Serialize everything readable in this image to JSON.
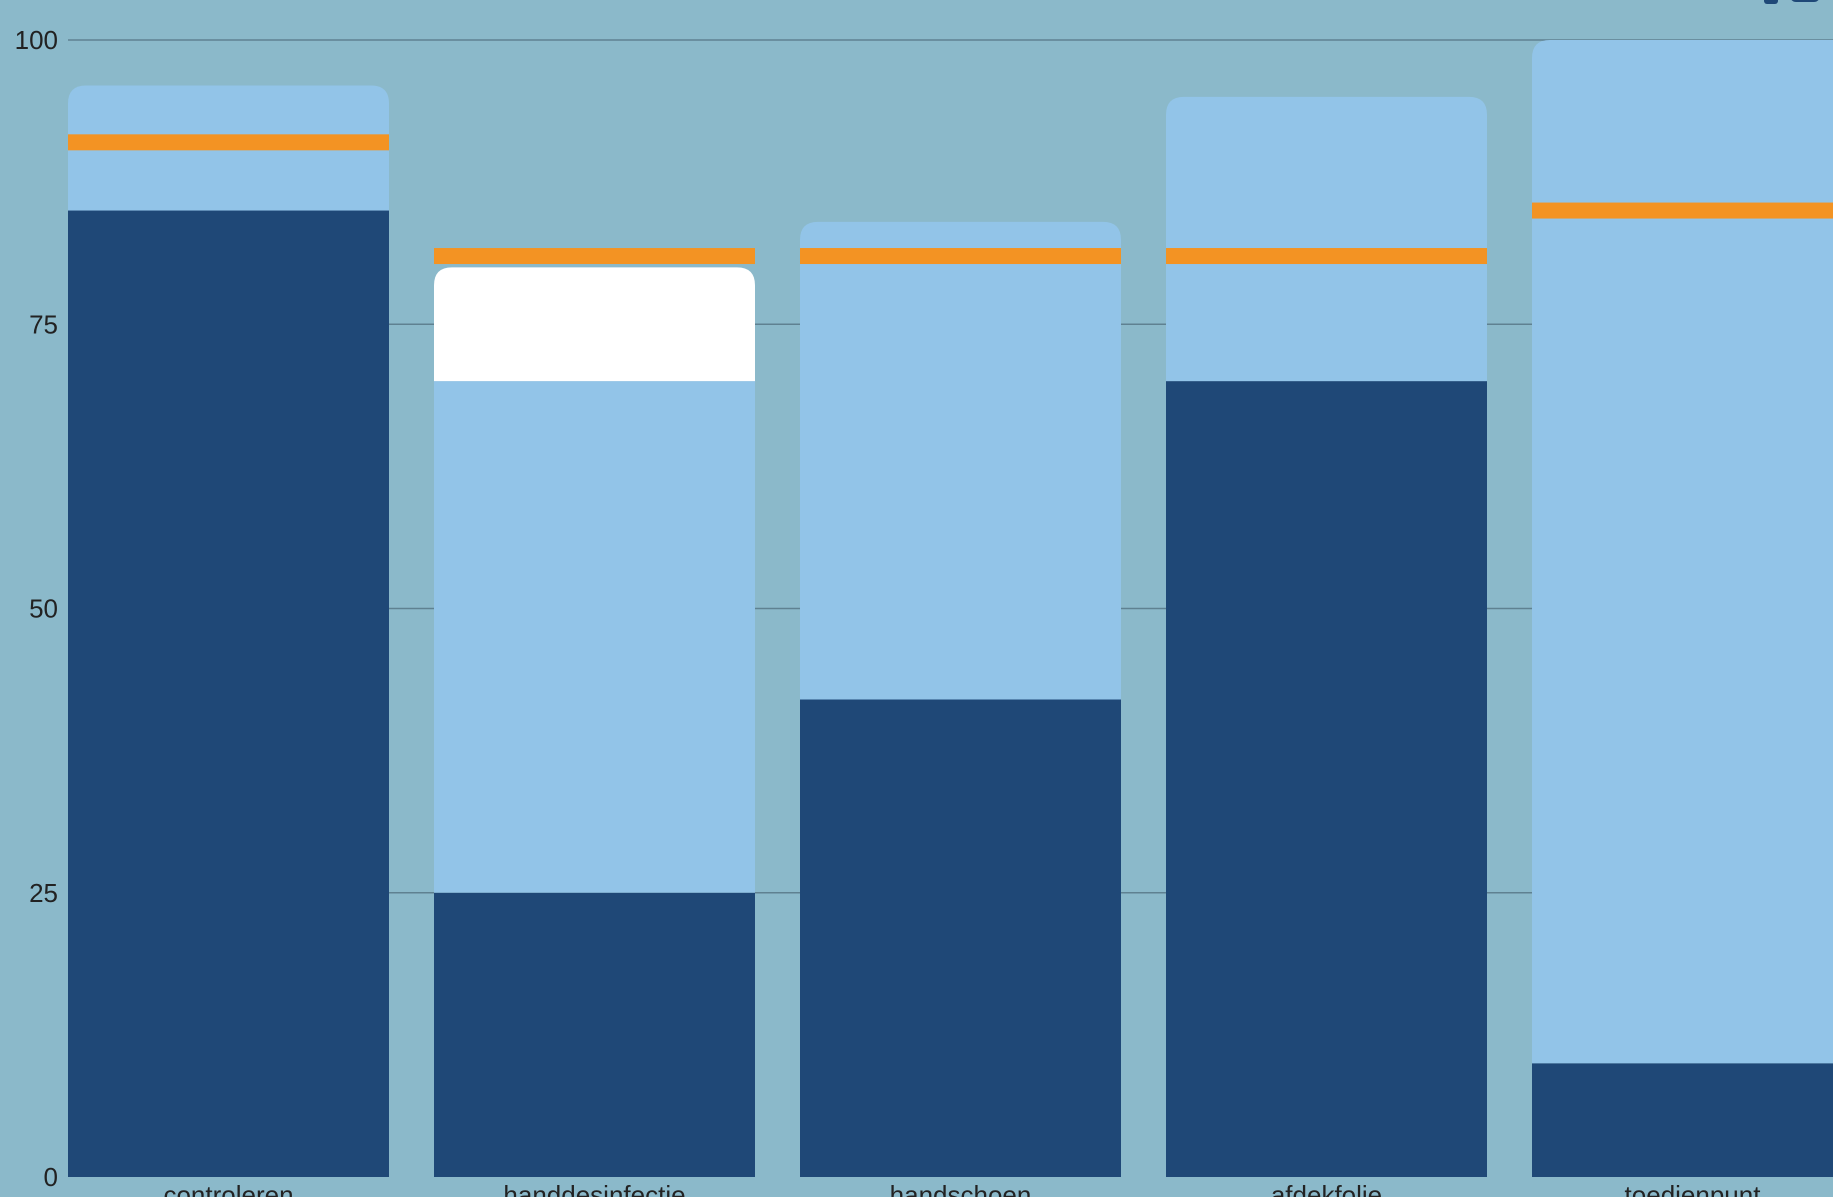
{
  "chart_data": {
    "type": "bar",
    "stacked": true,
    "categories": [
      "controleren",
      "handdesinfectie",
      "handschoen",
      "afdekfolie",
      "toedienpunt"
    ],
    "series": [
      {
        "values": [
          85,
          25,
          42,
          70,
          10
        ]
      },
      {
        "values": [
          11,
          45,
          42,
          25,
          90
        ]
      },
      {
        "values": [
          0,
          10,
          0,
          0,
          0
        ]
      }
    ],
    "target_markers": [
      91,
      81,
      81,
      81,
      85
    ],
    "yticks": [
      0,
      25,
      50,
      75,
      100
    ],
    "ylim": [
      0,
      100
    ],
    "grid": true,
    "colors": {
      "background": "#8bb9ca",
      "series_dark": "#1f4877",
      "series_light": "#92c4e8",
      "series_white": "#ffffff",
      "target_marker": "#f39323",
      "grid": "#5f8191"
    }
  }
}
